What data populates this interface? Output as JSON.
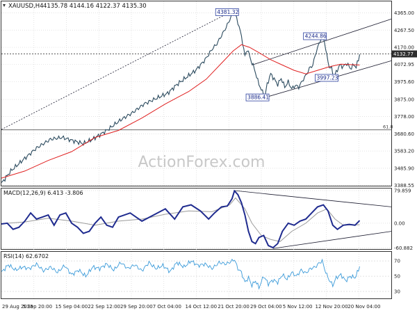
{
  "header": {
    "symbol": "XAUUSD,H4",
    "ohlc": "4135.78 4144.16 4122.37 4135.30"
  },
  "watermark": "ActionForex.com",
  "colors": {
    "price": "#2b4a5e",
    "ema": "#e02020",
    "macd": "#1f2b8f",
    "signal": "#9a9a9a",
    "rsi": "#3a9ad9",
    "trendline": "#1a1a2e",
    "label_border": "#2a3f9f",
    "label_text": "#1a2a8a",
    "grid": "#d8d8d8",
    "fib": "#555555",
    "watermark": "#c8c8c8",
    "current_price_bg": "#2e2e2e"
  },
  "chart_data": [
    {
      "type": "line",
      "name": "price",
      "x_tick_labels": [
        "29 Aug 2025",
        "5 Sep 20:00",
        "15 Sep 04:00",
        "22 Sep 12:00",
        "29 Sep 20:00",
        "7 Oct 04:00",
        "14 Oct 12:00",
        "21 Oct 20:00",
        "29 Oct 04:00",
        "5 Nov 12:00",
        "12 Nov 20:00",
        "20 Nov 04:00"
      ],
      "y_tick_labels": [
        "4365.00",
        "4267.50",
        "4170.00",
        "4072.95",
        "3975.60",
        "3875.00",
        "3778.00",
        "3680.60",
        "3583.20",
        "3485.90",
        "3388.55"
      ],
      "y_ticks": [
        4365.0,
        4267.5,
        4170.0,
        4072.95,
        3975.6,
        3875.0,
        3778.0,
        3680.6,
        3583.2,
        3485.9,
        3388.55
      ],
      "ylim": [
        3383,
        4430
      ],
      "close_series": [
        [
          0,
          3400
        ],
        [
          8,
          3470
        ],
        [
          18,
          3530
        ],
        [
          30,
          3600
        ],
        [
          42,
          3650
        ],
        [
          52,
          3660
        ],
        [
          62,
          3640
        ],
        [
          70,
          3625
        ],
        [
          78,
          3650
        ],
        [
          90,
          3700
        ],
        [
          102,
          3760
        ],
        [
          112,
          3800
        ],
        [
          122,
          3850
        ],
        [
          132,
          3880
        ],
        [
          142,
          3910
        ],
        [
          150,
          3960
        ],
        [
          158,
          4000
        ],
        [
          166,
          4040
        ],
        [
          174,
          4100
        ],
        [
          180,
          4160
        ],
        [
          184,
          4190
        ],
        [
          190,
          4260
        ],
        [
          194,
          4310
        ],
        [
          197,
          4360
        ],
        [
          199,
          4381
        ],
        [
          201,
          4330
        ],
        [
          203,
          4290
        ],
        [
          206,
          4200
        ],
        [
          208,
          4120
        ],
        [
          210,
          4160
        ],
        [
          213,
          4100
        ],
        [
          216,
          4050
        ],
        [
          219,
          3980
        ],
        [
          222,
          3930
        ],
        [
          225,
          3890
        ],
        [
          227,
          3960
        ],
        [
          230,
          4020
        ],
        [
          233,
          3990
        ],
        [
          236,
          3960
        ],
        [
          239,
          3995
        ],
        [
          242,
          3945
        ],
        [
          245,
          3975
        ],
        [
          248,
          3935
        ],
        [
          251,
          3955
        ],
        [
          254,
          3945
        ],
        [
          257,
          3980
        ],
        [
          260,
          4010
        ],
        [
          263,
          4050
        ],
        [
          266,
          4070
        ],
        [
          269,
          4150
        ],
        [
          272,
          4200
        ],
        [
          274,
          4244
        ],
        [
          276,
          4200
        ],
        [
          278,
          4120
        ],
        [
          280,
          4060
        ],
        [
          282,
          4050
        ],
        [
          284,
          3998
        ],
        [
          286,
          4030
        ],
        [
          289,
          4070
        ],
        [
          292,
          4060
        ],
        [
          295,
          4080
        ],
        [
          298,
          4050
        ],
        [
          301,
          4070
        ],
        [
          303,
          4060
        ],
        [
          305,
          4100
        ],
        [
          306,
          4130
        ]
      ],
      "ema_series": [
        [
          0,
          3430
        ],
        [
          20,
          3470
        ],
        [
          40,
          3530
        ],
        [
          60,
          3580
        ],
        [
          70,
          3620
        ],
        [
          80,
          3660
        ],
        [
          100,
          3700
        ],
        [
          120,
          3770
        ],
        [
          140,
          3850
        ],
        [
          160,
          3920
        ],
        [
          175,
          3990
        ],
        [
          188,
          4080
        ],
        [
          198,
          4150
        ],
        [
          205,
          4185
        ],
        [
          212,
          4170
        ],
        [
          220,
          4140
        ],
        [
          230,
          4100
        ],
        [
          240,
          4070
        ],
        [
          250,
          4040
        ],
        [
          260,
          4020
        ],
        [
          270,
          4040
        ],
        [
          280,
          4060
        ],
        [
          290,
          4075
        ],
        [
          306,
          4070
        ]
      ],
      "last_price": "4132.77",
      "last_price_value": 4132.77,
      "annotations": [
        {
          "label": "4381.32",
          "x": 199,
          "y": 4381.32
        },
        {
          "label": "4244.86",
          "x": 274,
          "y": 4244.86
        },
        {
          "label": "3886.41",
          "x": 225,
          "y": 3886.41
        },
        {
          "label": "3997.23",
          "x": 284,
          "y": 3997.23
        }
      ],
      "fib_level": {
        "label": "61.8",
        "y": 3703
      },
      "dotted_level": 4132.77,
      "trendlines": [
        {
          "from": [
            0,
            3705
          ],
          "to": [
            199,
            4381.32
          ],
          "style": "dashed"
        },
        {
          "from": [
            214,
            4070
          ],
          "to": [
            333,
            4330
          ]
        },
        {
          "from": [
            225,
            3886
          ],
          "to": [
            333,
            4094
          ]
        }
      ]
    },
    {
      "type": "line",
      "name": "MACD(12,26,9)",
      "title": "MACD(12,26,9) 6.413 -3.806",
      "y_tick_labels": [
        "79.859",
        "0.00",
        "-60.882"
      ],
      "y_ticks": [
        79.859,
        0,
        -60.882
      ],
      "ylim": [
        -65,
        85
      ],
      "macd_series": [
        [
          0,
          -2
        ],
        [
          5,
          0
        ],
        [
          10,
          -15
        ],
        [
          15,
          -10
        ],
        [
          20,
          5
        ],
        [
          25,
          25
        ],
        [
          30,
          10
        ],
        [
          35,
          15
        ],
        [
          40,
          20
        ],
        [
          45,
          -5
        ],
        [
          50,
          20
        ],
        [
          55,
          25
        ],
        [
          60,
          0
        ],
        [
          65,
          -10
        ],
        [
          70,
          -25
        ],
        [
          75,
          -20
        ],
        [
          80,
          0
        ],
        [
          85,
          15
        ],
        [
          90,
          -5
        ],
        [
          95,
          -10
        ],
        [
          100,
          15
        ],
        [
          110,
          25
        ],
        [
          120,
          5
        ],
        [
          130,
          20
        ],
        [
          140,
          35
        ],
        [
          148,
          10
        ],
        [
          155,
          40
        ],
        [
          162,
          45
        ],
        [
          170,
          30
        ],
        [
          177,
          10
        ],
        [
          182,
          25
        ],
        [
          188,
          40
        ],
        [
          193,
          42
        ],
        [
          197,
          60
        ],
        [
          199,
          79
        ],
        [
          202,
          70
        ],
        [
          205,
          50
        ],
        [
          208,
          20
        ],
        [
          211,
          -20
        ],
        [
          214,
          -45
        ],
        [
          217,
          -50
        ],
        [
          220,
          -35
        ],
        [
          224,
          -30
        ],
        [
          228,
          -55
        ],
        [
          232,
          -60
        ],
        [
          236,
          -50
        ],
        [
          240,
          -20
        ],
        [
          245,
          0
        ],
        [
          250,
          -5
        ],
        [
          255,
          5
        ],
        [
          260,
          10
        ],
        [
          265,
          25
        ],
        [
          270,
          40
        ],
        [
          275,
          45
        ],
        [
          279,
          30
        ],
        [
          283,
          -5
        ],
        [
          287,
          -15
        ],
        [
          292,
          -5
        ],
        [
          297,
          -3
        ],
        [
          302,
          -5
        ],
        [
          306,
          6.413
        ]
      ],
      "signal_series": [
        [
          0,
          -1
        ],
        [
          20,
          3
        ],
        [
          40,
          12
        ],
        [
          60,
          5
        ],
        [
          80,
          -5
        ],
        [
          100,
          5
        ],
        [
          120,
          10
        ],
        [
          140,
          22
        ],
        [
          160,
          30
        ],
        [
          180,
          28
        ],
        [
          195,
          45
        ],
        [
          200,
          62
        ],
        [
          208,
          35
        ],
        [
          214,
          0
        ],
        [
          222,
          -30
        ],
        [
          230,
          -40
        ],
        [
          238,
          -45
        ],
        [
          248,
          -20
        ],
        [
          260,
          0
        ],
        [
          270,
          25
        ],
        [
          278,
          35
        ],
        [
          285,
          10
        ],
        [
          292,
          -5
        ],
        [
          306,
          -3.806
        ]
      ],
      "trendlines": [
        {
          "from": [
            199,
            79.859
          ],
          "to": [
            333,
            40
          ]
        },
        {
          "from": [
            232,
            -62
          ],
          "to": [
            333,
            -20
          ]
        }
      ]
    },
    {
      "type": "line",
      "name": "RSI(14)",
      "title": "RSI(14) 62.6702",
      "y_tick_labels": [
        "70",
        "50",
        "30"
      ],
      "y_ticks": [
        70,
        50,
        30
      ],
      "ylim": [
        20,
        82
      ],
      "rsi_series": [
        [
          0,
          55
        ],
        [
          6,
          65
        ],
        [
          12,
          58
        ],
        [
          18,
          62
        ],
        [
          24,
          60
        ],
        [
          30,
          66
        ],
        [
          36,
          57
        ],
        [
          42,
          62
        ],
        [
          48,
          55
        ],
        [
          54,
          64
        ],
        [
          60,
          52
        ],
        [
          66,
          58
        ],
        [
          72,
          50
        ],
        [
          78,
          62
        ],
        [
          84,
          60
        ],
        [
          90,
          66
        ],
        [
          96,
          58
        ],
        [
          102,
          68
        ],
        [
          108,
          60
        ],
        [
          114,
          65
        ],
        [
          120,
          57
        ],
        [
          126,
          68
        ],
        [
          132,
          60
        ],
        [
          138,
          64
        ],
        [
          144,
          56
        ],
        [
          150,
          68
        ],
        [
          156,
          62
        ],
        [
          162,
          70
        ],
        [
          168,
          64
        ],
        [
          174,
          66
        ],
        [
          180,
          60
        ],
        [
          186,
          68
        ],
        [
          192,
          66
        ],
        [
          197,
          70
        ],
        [
          199,
          72
        ],
        [
          202,
          60
        ],
        [
          205,
          55
        ],
        [
          208,
          42
        ],
        [
          211,
          48
        ],
        [
          214,
          38
        ],
        [
          217,
          44
        ],
        [
          220,
          35
        ],
        [
          224,
          50
        ],
        [
          228,
          40
        ],
        [
          232,
          45
        ],
        [
          236,
          42
        ],
        [
          240,
          52
        ],
        [
          244,
          46
        ],
        [
          248,
          55
        ],
        [
          252,
          50
        ],
        [
          256,
          58
        ],
        [
          260,
          54
        ],
        [
          264,
          60
        ],
        [
          268,
          62
        ],
        [
          272,
          68
        ],
        [
          274,
          70
        ],
        [
          277,
          55
        ],
        [
          280,
          45
        ],
        [
          283,
          38
        ],
        [
          286,
          48
        ],
        [
          290,
          52
        ],
        [
          294,
          44
        ],
        [
          298,
          50
        ],
        [
          302,
          48
        ],
        [
          305,
          58
        ],
        [
          306,
          62.67
        ]
      ]
    }
  ]
}
